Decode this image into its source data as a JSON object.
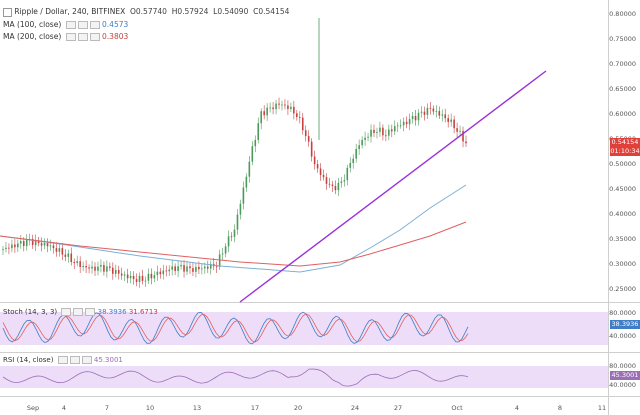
{
  "legend": {
    "symbol_line": "Ripple / Dollar, 240, BITFINEX",
    "o_label": "O",
    "o_value": "0.57740",
    "h_label": "H",
    "h_value": "0.57924",
    "l_label": "L",
    "l_value": "0.54090",
    "c_label": "C",
    "c_value": "0.54154",
    "ma100_label": "MA (100, close)",
    "ma100_value": "0.4573",
    "ma200_label": "MA (200, close)",
    "ma200_value": "0.3803"
  },
  "price_axis": {
    "ticks": [
      "0.80000",
      "0.75000",
      "0.70000",
      "0.65000",
      "0.60000",
      "0.55000",
      "0.50000",
      "0.45000",
      "0.40000",
      "0.35000",
      "0.30000",
      "0.25000"
    ],
    "last_price_tag": "0.54154",
    "countdown_tag": "01:10:34"
  },
  "stoch": {
    "label": "Stoch (14, 3, 3)",
    "k_value": "38.3936",
    "d_value": "31.6713",
    "axis": [
      "80.0000",
      "40.0000"
    ],
    "tag": "38.3936"
  },
  "rsi": {
    "label": "RSI (14, close)",
    "value": "45.3001",
    "axis": [
      "80.0000",
      "40.0000"
    ],
    "tag": "45.3001"
  },
  "time_axis": [
    "Sep",
    "4",
    "7",
    "10",
    "13",
    "17",
    "20",
    "24",
    "27",
    "Oct",
    "4",
    "8",
    "11"
  ],
  "colors": {
    "up": "#4a9b5a",
    "down": "#c64040",
    "trendline": "#9b30d9",
    "ma100": "#7ab0d8",
    "ma200": "#e06060",
    "stoch_fill": "#e9d4f7",
    "stoch_k": "#3f7dc7",
    "stoch_d": "#e06060",
    "rsi_line": "#9b6fb5"
  },
  "chart_data": {
    "type": "candlestick",
    "title": "Ripple / Dollar, 240, BITFINEX",
    "ylim": [
      0.23,
      0.8
    ],
    "x_labels": [
      "Sep",
      "4",
      "7",
      "10",
      "13",
      "17",
      "20",
      "24",
      "27",
      "Oct",
      "4",
      "8",
      "11"
    ],
    "close_series": [
      0.33,
      0.335,
      0.34,
      0.345,
      0.34,
      0.338,
      0.33,
      0.32,
      0.305,
      0.295,
      0.29,
      0.292,
      0.288,
      0.28,
      0.275,
      0.27,
      0.272,
      0.28,
      0.285,
      0.29,
      0.292,
      0.288,
      0.29,
      0.295,
      0.3,
      0.34,
      0.37,
      0.45,
      0.53,
      0.6,
      0.61,
      0.62,
      0.615,
      0.6,
      0.56,
      0.5,
      0.47,
      0.45,
      0.46,
      0.5,
      0.54,
      0.56,
      0.57,
      0.56,
      0.575,
      0.58,
      0.59,
      0.6,
      0.61,
      0.6,
      0.59,
      0.57,
      0.54154
    ]
  }
}
